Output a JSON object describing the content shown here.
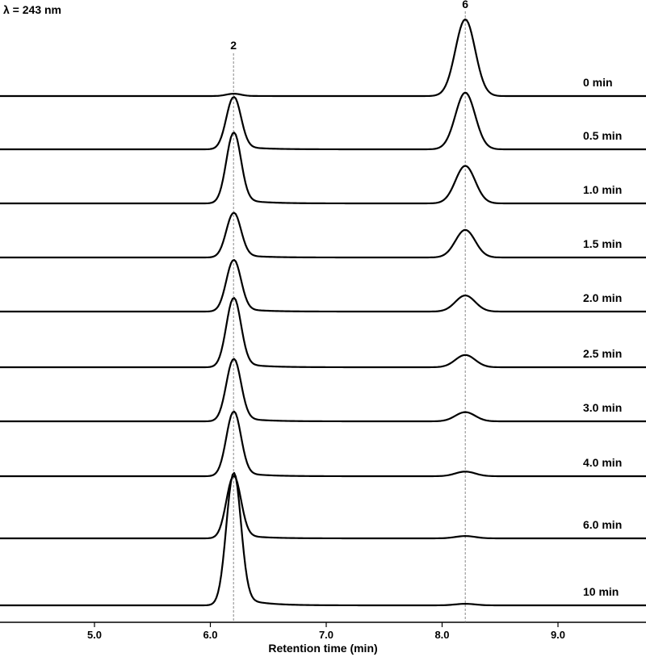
{
  "chart_data": {
    "type": "line",
    "title": "λ = 243 nm",
    "xlabel": "Retention time (min)",
    "ylabel": "",
    "xlim": [
      4.3,
      9.75
    ],
    "x_ticks": [
      5.0,
      6.0,
      7.0,
      8.0,
      9.0
    ],
    "x_tick_labels": [
      "5.0",
      "6.0",
      "7.0",
      "8.0",
      "9.0"
    ],
    "peaks": [
      {
        "label": "2",
        "retention_time": 6.2
      },
      {
        "label": "6",
        "retention_time": 8.2
      }
    ],
    "series": [
      {
        "name": "0 min",
        "peak2_height": 0.03,
        "peak6_height": 1.0
      },
      {
        "name": "0.5 min",
        "peak2_height": 0.68,
        "peak6_height": 0.74
      },
      {
        "name": "1.0 min",
        "peak2_height": 0.92,
        "peak6_height": 0.49
      },
      {
        "name": "1.5 min",
        "peak2_height": 0.58,
        "peak6_height": 0.36
      },
      {
        "name": "2.0 min",
        "peak2_height": 0.67,
        "peak6_height": 0.21
      },
      {
        "name": "2.5 min",
        "peak2_height": 0.9,
        "peak6_height": 0.16
      },
      {
        "name": "3.0 min",
        "peak2_height": 0.81,
        "peak6_height": 0.12
      },
      {
        "name": "4.0 min",
        "peak2_height": 0.84,
        "peak6_height": 0.06
      },
      {
        "name": "6.0 min",
        "peak2_height": 0.81,
        "peak6_height": 0.03
      },
      {
        "name": "10 min",
        "peak2_height": 1.72,
        "peak6_height": 0.02
      }
    ]
  }
}
